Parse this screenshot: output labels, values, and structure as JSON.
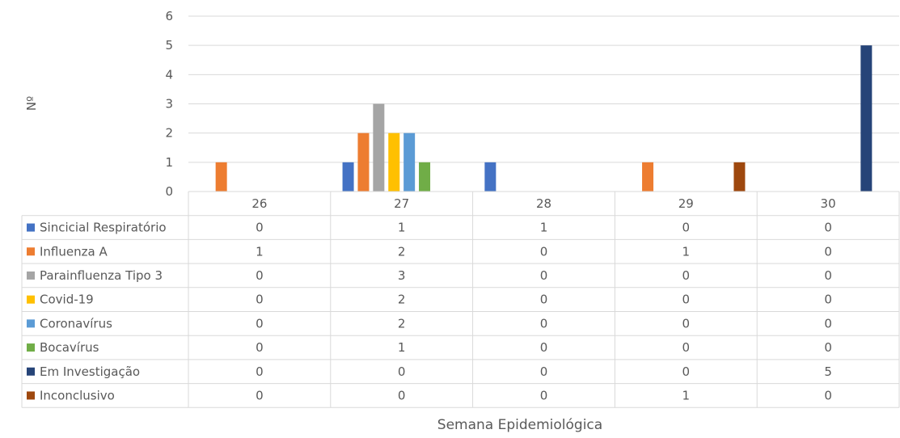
{
  "chart_data": {
    "type": "bar",
    "title": "",
    "xlabel": "Semana  Epidemiológica",
    "ylabel": "Nº",
    "ylim": [
      0,
      6
    ],
    "yticks": [
      0,
      1,
      2,
      3,
      4,
      5,
      6
    ],
    "grid": true,
    "legend": "data-table-left",
    "categories": [
      "26",
      "27",
      "28",
      "29",
      "30"
    ],
    "series": [
      {
        "name": "Sincicial Respiratório",
        "color": "#4472C4",
        "values": [
          0,
          1,
          1,
          0,
          0
        ]
      },
      {
        "name": "Influenza A",
        "color": "#ED7D31",
        "values": [
          1,
          2,
          0,
          1,
          0
        ]
      },
      {
        "name": "Parainfluenza Tipo 3",
        "color": "#A5A5A5",
        "values": [
          0,
          3,
          0,
          0,
          0
        ]
      },
      {
        "name": "Covid-19",
        "color": "#FFC000",
        "values": [
          0,
          2,
          0,
          0,
          0
        ]
      },
      {
        "name": "Coronavírus",
        "color": "#5B9BD5",
        "values": [
          0,
          2,
          0,
          0,
          0
        ]
      },
      {
        "name": "Bocavírus",
        "color": "#70AD47",
        "values": [
          0,
          1,
          0,
          0,
          0
        ]
      },
      {
        "name": "Em Investigação",
        "color": "#264478",
        "values": [
          0,
          0,
          0,
          0,
          5
        ]
      },
      {
        "name": "Inconclusivo",
        "color": "#9E480E",
        "values": [
          0,
          0,
          0,
          1,
          0
        ]
      }
    ]
  }
}
